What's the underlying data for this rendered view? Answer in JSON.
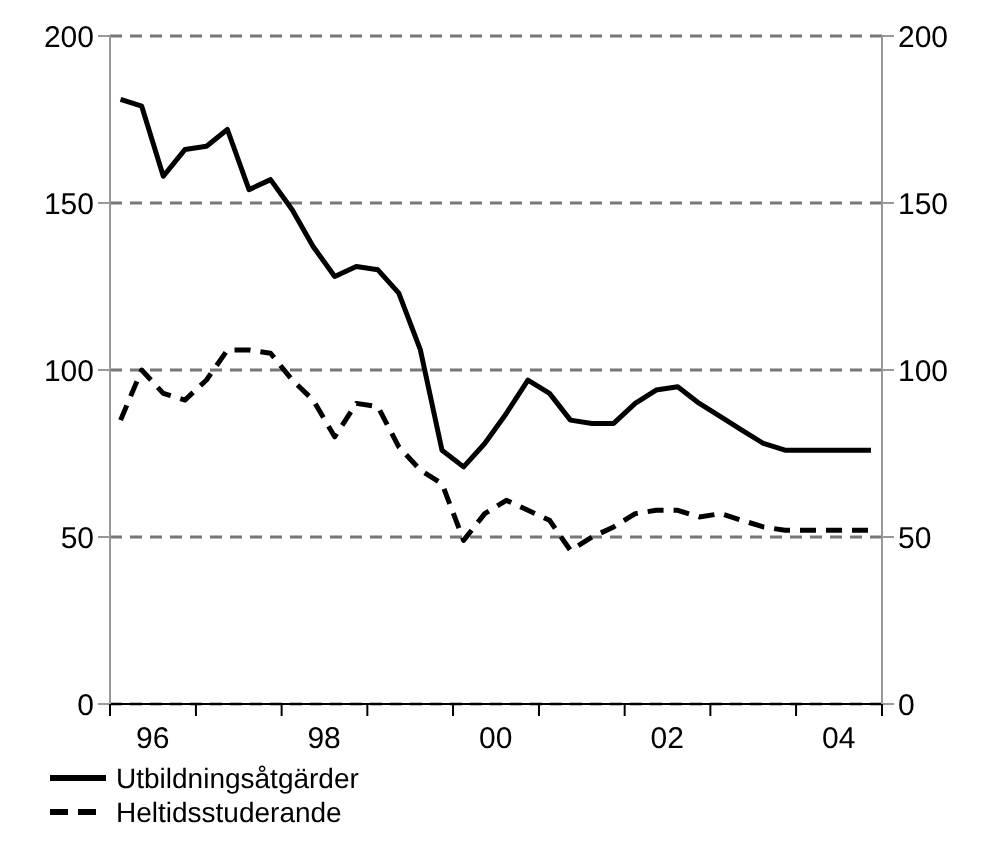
{
  "chart_data": {
    "type": "line",
    "x": [
      "1996-02-15",
      "1996-05-15",
      "1996-08-15",
      "1996-11-15",
      "1997-02-15",
      "1997-05-15",
      "1997-08-15",
      "1997-11-15",
      "1998-02-15",
      "1998-05-15",
      "1998-08-15",
      "1998-11-15",
      "1999-02-15",
      "1999-05-15",
      "1999-08-15",
      "1999-11-15",
      "2000-02-15",
      "2000-05-15",
      "2000-08-15",
      "2000-11-15",
      "2001-02-15",
      "2001-05-15",
      "2001-08-15",
      "2001-11-15",
      "2002-02-15",
      "2002-05-15",
      "2002-08-15",
      "2002-11-15",
      "2003-02-15",
      "2003-05-15",
      "2003-08-15",
      "2003-11-15",
      "2004-02-15",
      "2004-05-15",
      "2004-08-15",
      "2004-11-15"
    ],
    "series": [
      {
        "name": "Utbildningsåtgärder",
        "color": "#000000",
        "line_style": "solid",
        "values": [
          181,
          179,
          158,
          166,
          167,
          172,
          154,
          157,
          148,
          137,
          128,
          131,
          130,
          123,
          106,
          76,
          71,
          78,
          87,
          97,
          93,
          85,
          84,
          84,
          90,
          94,
          95,
          90,
          86,
          82,
          78,
          76,
          76,
          76,
          76,
          76
        ]
      },
      {
        "name": "Heltidsstuderande",
        "color": "#000000",
        "line_style": "dashed",
        "values": [
          85,
          100,
          93,
          91,
          97,
          106,
          106,
          105,
          97,
          91,
          80,
          90,
          89,
          77,
          70,
          66,
          49,
          57,
          61,
          58,
          55,
          46,
          50,
          53,
          57,
          58,
          58,
          56,
          57,
          55,
          53,
          52,
          52,
          52,
          52,
          52
        ]
      }
    ],
    "xlim": [
      "1996-01-01",
      "2005-01-01"
    ],
    "xticks": [
      {
        "value": "1996-01-01",
        "label": null
      },
      {
        "value": "1996-07-01",
        "label": "96"
      },
      {
        "value": "1997-01-01",
        "label": null
      },
      {
        "value": "1998-01-01",
        "label": null
      },
      {
        "value": "1998-07-01",
        "label": "98"
      },
      {
        "value": "1999-01-01",
        "label": null
      },
      {
        "value": "2000-01-01",
        "label": null
      },
      {
        "value": "2000-07-01",
        "label": "00"
      },
      {
        "value": "2001-01-01",
        "label": null
      },
      {
        "value": "2002-01-01",
        "label": null
      },
      {
        "value": "2002-07-01",
        "label": "02"
      },
      {
        "value": "2003-01-01",
        "label": null
      },
      {
        "value": "2004-01-01",
        "label": null
      },
      {
        "value": "2004-07-01",
        "label": "04"
      },
      {
        "value": "2005-01-01",
        "label": null
      }
    ],
    "ylim": [
      0,
      200
    ],
    "yticks": [
      0,
      50,
      100,
      150,
      200
    ],
    "y2lim": [
      0,
      200
    ],
    "y2ticks": [
      0,
      50,
      100,
      150,
      200
    ],
    "grid": "y",
    "legend": "bottom",
    "marker": "none"
  }
}
